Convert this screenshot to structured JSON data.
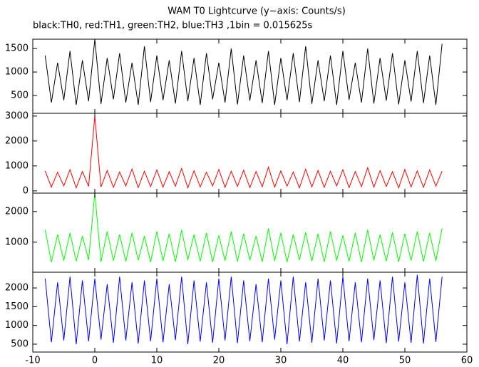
{
  "chart_data": {
    "type": "line",
    "title": "WAM T0 Lightcurve (y−axis: Counts/s)",
    "subtitle": "black:TH0, red:TH1, green:TH2, blue:TH3 ,1bin = 0.015625s",
    "x": [
      -8,
      -7,
      -6,
      -5,
      -4,
      -3,
      -2,
      -1,
      0,
      1,
      2,
      3,
      4,
      5,
      6,
      7,
      8,
      9,
      10,
      11,
      12,
      13,
      14,
      15,
      16,
      17,
      18,
      19,
      20,
      21,
      22,
      23,
      24,
      25,
      26,
      27,
      28,
      29,
      30,
      31,
      32,
      33,
      34,
      35,
      36,
      37,
      38,
      39,
      40,
      41,
      42,
      43,
      44,
      45,
      46,
      47,
      48,
      49,
      50,
      51,
      52,
      53,
      54,
      55,
      56
    ],
    "xlim": [
      -10,
      60
    ],
    "xticks": [
      -10,
      0,
      10,
      20,
      30,
      40,
      50,
      60
    ],
    "series": [
      {
        "color": "#000000",
        "ylim": [
          120,
          1700
        ],
        "yticks": [
          500,
          1000,
          1500
        ],
        "values": [
          1350,
          350,
          1200,
          400,
          1450,
          300,
          1250,
          380,
          1700,
          320,
          1300,
          420,
          1400,
          350,
          1200,
          300,
          1550,
          360,
          1350,
          400,
          1250,
          330,
          1450,
          380,
          1300,
          300,
          1400,
          420,
          1200,
          350,
          1500,
          310,
          1350,
          390,
          1250,
          340,
          1450,
          300,
          1300,
          400,
          1400,
          360,
          1550,
          320,
          1250,
          380,
          1350,
          300,
          1450,
          410,
          1200,
          350,
          1500,
          330,
          1300,
          390,
          1400,
          310,
          1250,
          370,
          1450,
          340,
          1350,
          300,
          1600
        ]
      },
      {
        "color": "#ff0000",
        "ylim": [
          -90,
          3110
        ],
        "yticks": [
          0,
          1000,
          2000,
          3000
        ],
        "values": [
          800,
          150,
          750,
          200,
          850,
          120,
          780,
          180,
          3000,
          160,
          820,
          140,
          760,
          200,
          880,
          130,
          790,
          170,
          840,
          150,
          770,
          190,
          900,
          120,
          810,
          160,
          750,
          200,
          860,
          140,
          790,
          180,
          830,
          130,
          780,
          170,
          950,
          150,
          800,
          190,
          760,
          120,
          870,
          160,
          820,
          140,
          790,
          200,
          850,
          130,
          780,
          170,
          930,
          150,
          810,
          180,
          770,
          120,
          860,
          160,
          800,
          140,
          840,
          190,
          790
        ]
      },
      {
        "color": "#00ff00",
        "ylim": [
          20,
          2600
        ],
        "yticks": [
          1000,
          2000
        ],
        "values": [
          1400,
          350,
          1250,
          400,
          1300,
          380,
          1200,
          420,
          2600,
          360,
          1350,
          400,
          1250,
          370,
          1300,
          410,
          1200,
          350,
          1350,
          390,
          1280,
          360,
          1400,
          420,
          1250,
          380,
          1300,
          350,
          1220,
          400,
          1350,
          370,
          1280,
          410,
          1200,
          360,
          1450,
          390,
          1300,
          350,
          1250,
          420,
          1320,
          380,
          1280,
          360,
          1350,
          400,
          1220,
          370,
          1300,
          350,
          1400,
          410,
          1250,
          380,
          1320,
          360,
          1280,
          400,
          1350,
          370,
          1300,
          390,
          1450
        ]
      },
      {
        "color": "#0000ff",
        "ylim": [
          290,
          2420
        ],
        "yticks": [
          500,
          1000,
          1500,
          2000
        ],
        "values": [
          2250,
          550,
          2150,
          600,
          2300,
          500,
          2200,
          580,
          2250,
          620,
          2100,
          540,
          2300,
          600,
          2150,
          520,
          2200,
          580,
          2250,
          550,
          2100,
          610,
          2300,
          500,
          2200,
          570,
          2150,
          540,
          2250,
          600,
          2300,
          530,
          2200,
          580,
          2100,
          550,
          2250,
          620,
          2200,
          500,
          2300,
          570,
          2150,
          540,
          2250,
          600,
          2200,
          520,
          2300,
          580,
          2150,
          550,
          2250,
          610,
          2200,
          530,
          2300,
          570,
          2150,
          540,
          2350,
          520,
          2250,
          560,
          2300
        ]
      }
    ]
  }
}
